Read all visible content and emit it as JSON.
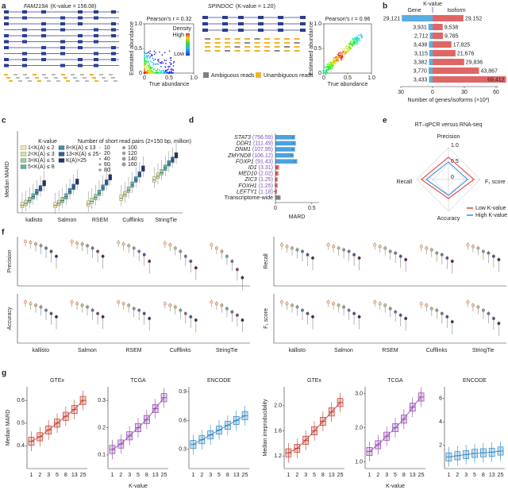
{
  "chart_data": [
    {
      "type": "scatter",
      "label": "a",
      "insets": [
        {
          "gene": "FAM219A",
          "kvalue": "(K-value = 156.08)",
          "pearson": "Pearson's r = 0.32",
          "xlabel": "True abundance",
          "ylabel": "Estimated abundance",
          "xlim": [
            0,
            1
          ],
          "ylim": [
            0,
            1
          ],
          "xticks": [
            0,
            0.5,
            {
              "value": 1,
              "label": "1.0"
            }
          ],
          "yticks": [
            0,
            0.5,
            {
              "value": 1,
              "label": "1.0"
            }
          ],
          "colorbar": {
            "title": "Density",
            "high": "High",
            "low": "Low"
          }
        },
        {
          "gene": "SPINDOC",
          "kvalue": "(K-value = 1.20)",
          "pearson": "Pearson's r = 0.96",
          "xlabel": "True abundance",
          "ylabel": "Estimated abundance",
          "xlim": [
            0,
            1
          ],
          "ylim": [
            0,
            1
          ],
          "xticks": [
            0,
            0.5,
            {
              "value": 1,
              "label": "1.0"
            }
          ],
          "yticks": [
            0,
            0.5,
            {
              "value": 1,
              "label": "1.0"
            }
          ],
          "legend": [
            {
              "name": "Ambiguous reads",
              "color": "#7f7f7f"
            },
            {
              "name": "Unambiguous reads",
              "color": "#f0b429"
            }
          ]
        }
      ]
    },
    {
      "type": "bar",
      "label": "b",
      "annotation": "K-value",
      "xlabel": "Number of genes/isoforms (×10³)",
      "xlim": [
        0,
        60
      ],
      "xticks": [
        0,
        30,
        60
      ],
      "gene_xlim": [
        0,
        30
      ],
      "gene_xticks": [
        30
      ],
      "series": [
        {
          "name": "Gene",
          "color": "#5aaee0",
          "values": [
            29.121,
            3.931,
            2.712,
            3.438,
            3.115,
            3.382,
            3.77,
            3.433
          ],
          "value_labels": [
            "29,121",
            "3,931",
            "2,712",
            "3,438",
            "3,115",
            "3,382",
            "3,770",
            "3,433"
          ]
        },
        {
          "name": "Isoform",
          "color": "#e06666",
          "values": [
            29.152,
            9.538,
            9.785,
            17.825,
            21.676,
            29.836,
            43.867,
            69.412
          ],
          "value_labels": [
            "29,152",
            "9,538",
            "9,785",
            "17,825",
            "21,676",
            "29,836",
            "43,867",
            "69,412"
          ]
        }
      ]
    },
    {
      "type": "box",
      "label": "c",
      "ylabel": "Median MARD",
      "ylim": [
        0,
        0.9
      ],
      "legend_title": "K-value",
      "categories": [
        "kallisto",
        "Salmon",
        "RSEM",
        "Cufflinks",
        "StringTie"
      ],
      "series": [
        {
          "name": "1<K(A) ≤ 2",
          "color": "#f3e7b0",
          "values": [
            0.1,
            0.1,
            0.12,
            0.2,
            0.45
          ]
        },
        {
          "name": "2<K(A) ≤ 3",
          "color": "#cfe3a3",
          "values": [
            0.13,
            0.13,
            0.16,
            0.25,
            0.5
          ]
        },
        {
          "name": "3<K(A) ≤ 5",
          "color": "#94d1a1",
          "values": [
            0.17,
            0.17,
            0.21,
            0.31,
            0.55
          ]
        },
        {
          "name": "5<K(A) ≤ 8",
          "color": "#5bb3a8",
          "values": [
            0.22,
            0.22,
            0.27,
            0.38,
            0.61
          ]
        },
        {
          "name": "8<K(A) ≤ 13",
          "color": "#3a8fb0",
          "values": [
            0.28,
            0.29,
            0.34,
            0.45,
            0.67
          ]
        },
        {
          "name": "13<K(A) ≤ 25",
          "color": "#2c5f9e",
          "values": [
            0.33,
            0.35,
            0.41,
            0.52,
            0.72
          ]
        },
        {
          "name": "K(A)>25",
          "color": "#1f3570",
          "values": [
            0.4,
            0.42,
            0.48,
            0.6,
            0.78
          ]
        }
      ],
      "size_legend": {
        "title": "Number of short read pairs (2×150 bp, million)",
        "values": [
          10,
          20,
          40,
          60,
          80,
          100,
          120,
          140,
          160
        ]
      }
    },
    {
      "type": "bar",
      "label": "d",
      "xlabel": "MARD",
      "xlim": [
        0,
        0.6
      ],
      "xticks": [
        0,
        0.5
      ],
      "categories": [
        "STAT3",
        "DDR1",
        "DNM1",
        "ZMYND8",
        "FOXP1",
        "ID1",
        "MED10",
        "ZIC3",
        "FOXH1",
        "LEFTY1",
        "Transcriptome-wide"
      ],
      "k_labels": [
        "(756.59)",
        "(111.49)",
        "(107.95)",
        "(106.12)",
        "(91.43)",
        "(3.31)",
        "(2.02)",
        "(1.25)",
        "(1.25)",
        "(1.18)",
        null
      ],
      "values": [
        0.27,
        0.28,
        0.27,
        0.25,
        0.3,
        0.05,
        0.04,
        0.03,
        0.03,
        0.02,
        0.07
      ],
      "colors": [
        "#4aa3df",
        "#4aa3df",
        "#4aa3df",
        "#4aa3df",
        "#4aa3df",
        "#e06666",
        "#e06666",
        "#e06666",
        "#e06666",
        "#e06666",
        "#888888"
      ]
    },
    {
      "type": "radar",
      "label": "e",
      "title": "RT–qPCR versus RNA-seq",
      "axes": [
        "Precision",
        "F₁ score",
        "Accuracy",
        "Recall"
      ],
      "rlim": [
        0,
        1
      ],
      "rticks": [
        0,
        0.5,
        {
          "value": 1,
          "label": "1.0"
        }
      ],
      "series": [
        {
          "name": "Low K-value",
          "color": "#e0413a",
          "values": [
            0.7,
            0.8,
            0.6,
            0.85
          ]
        },
        {
          "name": "High K-value",
          "color": "#3a8ee0",
          "values": [
            0.55,
            0.6,
            0.5,
            0.7
          ]
        }
      ]
    },
    {
      "type": "dot",
      "label": "f",
      "categories": [
        "kallisto",
        "Salmon",
        "RSEM",
        "Cufflinks",
        "StringTie"
      ],
      "panels": [
        {
          "ylabel": "Precision",
          "ylim": [
            0.7,
            1
          ],
          "values": [
            [
              0.97,
              0.965,
              0.955,
              0.945,
              0.93,
              0.91,
              0.88
            ],
            [
              0.97,
              0.96,
              0.955,
              0.945,
              0.93,
              0.91,
              0.88
            ],
            [
              0.965,
              0.955,
              0.945,
              0.93,
              0.91,
              0.89,
              0.85
            ],
            [
              0.96,
              0.95,
              0.93,
              0.91,
              0.88,
              0.85,
              0.81
            ],
            [
              0.95,
              0.93,
              0.91,
              0.88,
              0.85,
              0.8,
              0.75
            ]
          ]
        },
        {
          "ylabel": "Accuracy",
          "ylim": [
            0.7,
            1
          ],
          "values": [
            [
              0.95,
              0.94,
              0.93,
              0.92,
              0.9,
              0.88,
              0.86
            ],
            [
              0.95,
              0.94,
              0.93,
              0.92,
              0.9,
              0.88,
              0.86
            ],
            [
              0.95,
              0.94,
              0.93,
              0.91,
              0.9,
              0.88,
              0.85
            ],
            [
              0.94,
              0.93,
              0.92,
              0.9,
              0.88,
              0.86,
              0.84
            ],
            [
              0.95,
              0.94,
              0.93,
              0.91,
              0.89,
              0.87,
              0.84
            ]
          ]
        },
        {
          "ylabel": "Recall",
          "ylim": [
            0.7,
            1
          ],
          "values": [
            [
              0.95,
              0.94,
              0.93,
              0.92,
              0.91,
              0.89,
              0.87
            ],
            [
              0.95,
              0.94,
              0.93,
              0.92,
              0.91,
              0.89,
              0.87
            ],
            [
              0.95,
              0.94,
              0.93,
              0.91,
              0.9,
              0.88,
              0.86
            ],
            [
              0.94,
              0.93,
              0.92,
              0.9,
              0.89,
              0.87,
              0.85
            ],
            [
              0.95,
              0.94,
              0.93,
              0.91,
              0.9,
              0.88,
              0.86
            ]
          ]
        },
        {
          "ylabel": "F₁ score",
          "ylim": [
            0.7,
            1
          ],
          "values": [
            [
              0.95,
              0.94,
              0.93,
              0.92,
              0.9,
              0.88,
              0.86
            ],
            [
              0.95,
              0.94,
              0.93,
              0.92,
              0.9,
              0.88,
              0.86
            ],
            [
              0.95,
              0.94,
              0.93,
              0.91,
              0.89,
              0.87,
              0.85
            ],
            [
              0.94,
              0.93,
              0.91,
              0.9,
              0.88,
              0.86,
              0.83
            ],
            [
              0.95,
              0.93,
              0.92,
              0.9,
              0.88,
              0.85,
              0.82
            ]
          ]
        }
      ]
    },
    {
      "type": "box",
      "label": "g",
      "categories": [
        "1",
        "2",
        "3",
        "5",
        "8",
        "13",
        "25"
      ],
      "xlabel": "K-value",
      "panels": [
        {
          "title": "GTEx",
          "ylabel": "Median MARD",
          "color": "#c0392b",
          "ylim": [
            0.3,
            0.66
          ],
          "yticks": [
            0.4,
            0.5,
            0.6
          ],
          "values": [
            0.42,
            0.44,
            0.47,
            0.5,
            0.53,
            0.56,
            0.6
          ]
        },
        {
          "title": "TCGA",
          "color": "#8e44ad",
          "ylim": [
            0.05,
            0.35
          ],
          "yticks": [
            0.1,
            0.2,
            0.3
          ],
          "values": [
            0.12,
            0.14,
            0.17,
            0.2,
            0.23,
            0.27,
            0.31
          ]
        },
        {
          "title": "ENCODE",
          "color": "#2e86c1",
          "ylim": [
            0.1,
            0.95
          ],
          "yticks": [
            0.3,
            0.6,
            0.9
          ],
          "values": [
            0.35,
            0.4,
            0.45,
            0.5,
            0.55,
            0.6,
            0.65
          ]
        },
        {
          "title": "GTEx",
          "ylabel": "Median irreproducibility",
          "color": "#c0392b",
          "ylim": [
            1,
            2.3
          ],
          "yticks": [
            1.2,
            1.6,
            {
              "value": 2,
              "label": "2.0"
            }
          ],
          "values": [
            1.25,
            1.32,
            1.45,
            1.6,
            1.75,
            1.9,
            2.05
          ]
        },
        {
          "title": "TCGA",
          "color": "#8e44ad",
          "ylim": [
            0.8,
            3.2
          ],
          "yticks": [
            {
              "value": 1,
              "label": "1.0"
            },
            {
              "value": 2,
              "label": "2.0"
            },
            {
              "value": 3,
              "label": "3.0"
            }
          ],
          "values": [
            1.3,
            1.5,
            1.75,
            2,
            2.25,
            2.6,
            2.9
          ]
        },
        {
          "title": "ENCODE",
          "color": "#2e86c1",
          "ylim": [
            0,
            7
          ],
          "yticks": [
            2,
            4,
            6
          ],
          "values": [
            1,
            1.1,
            1.2,
            1.3,
            1.35,
            1.4,
            1.5
          ]
        }
      ]
    }
  ]
}
